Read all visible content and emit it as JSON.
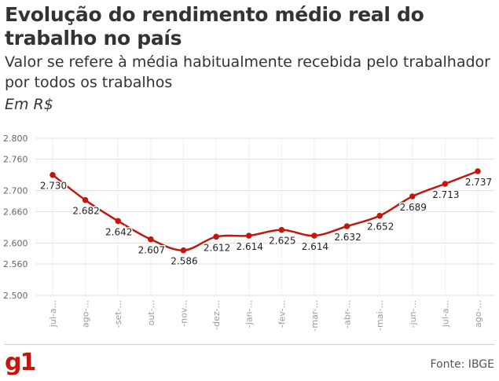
{
  "header": {
    "title": "Evolução do rendimento médio real do trabalho no país",
    "subtitle": "Valor se refere à média habitualmente recebida pelo trabalhador por todos os trabalhos",
    "unit": "Em R$"
  },
  "chart_data": {
    "type": "line",
    "categories": [
      "jul-a...",
      "ago-...",
      "-set-...",
      "out-...",
      "-nov...",
      "-dez-...",
      "-jan-...",
      "-fev-...",
      "-mar-...",
      "-abr-...",
      "-mai-...",
      "-jun-...",
      "jul-a...",
      "ago-..."
    ],
    "series": [
      {
        "values": [
          2730,
          2682,
          2642,
          2607,
          2586,
          2612,
          2614,
          2625,
          2614,
          2632,
          2652,
          2689,
          2713,
          2737
        ],
        "labels": [
          "2.730",
          "2.682",
          "2.642",
          "2.607",
          "2.586",
          "2.612",
          "2.614",
          "2.625",
          "2.614",
          "2.632",
          "2.652",
          "2.689",
          "2.713",
          "2.737"
        ]
      }
    ],
    "yticks": [
      2500,
      2560,
      2600,
      2660,
      2700,
      2760,
      2800
    ],
    "ytick_labels": [
      "2.500",
      "2.560",
      "2.600",
      "2.660",
      "2.700",
      "2.760",
      "2.800"
    ],
    "ylim": [
      2500,
      2800
    ],
    "line_color": "#c4170c",
    "grid": true
  },
  "footer": {
    "logo": "g1",
    "source": "Fonte: IBGE"
  }
}
